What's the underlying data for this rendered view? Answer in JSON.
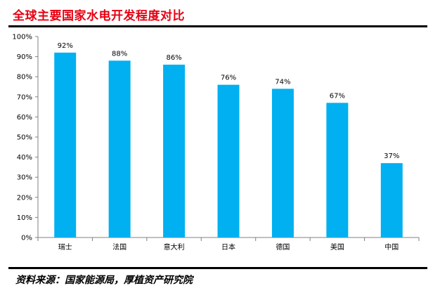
{
  "title": "全球主要国家水电开发程度对比",
  "source": "资料来源：国家能源局，厚植资产研究院",
  "colors": {
    "bar": "#00b0f0",
    "title": "#e60012",
    "axis": "#808080"
  },
  "chart_data": {
    "type": "bar",
    "title": "全球主要国家水电开发程度对比",
    "categories": [
      "瑞士",
      "法国",
      "意大利",
      "日本",
      "德国",
      "美国",
      "中国"
    ],
    "values": [
      92,
      88,
      86,
      76,
      74,
      67,
      37
    ],
    "data_labels": [
      "92%",
      "88%",
      "86%",
      "76%",
      "74%",
      "67%",
      "37%"
    ],
    "ylim": [
      0,
      100
    ],
    "yticks": [
      0,
      10,
      20,
      30,
      40,
      50,
      60,
      70,
      80,
      90,
      100
    ],
    "ytick_labels": [
      "0%",
      "10%",
      "20%",
      "30%",
      "40%",
      "50%",
      "60%",
      "70%",
      "80%",
      "90%",
      "100%"
    ],
    "xlabel": "",
    "ylabel": "",
    "grid": false,
    "legend": "none"
  }
}
